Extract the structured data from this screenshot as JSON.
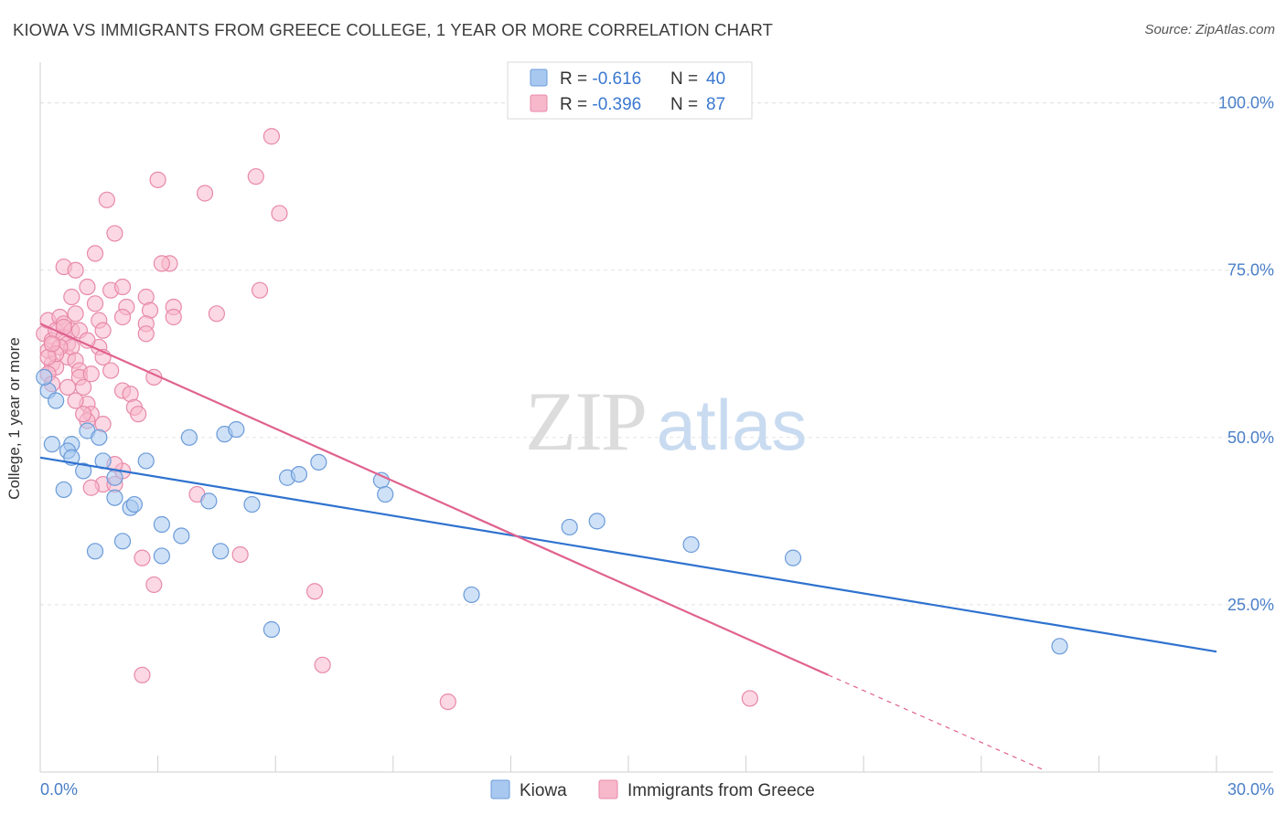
{
  "chart_data": {
    "type": "scatter",
    "title": "KIOWA VS IMMIGRANTS FROM GREECE COLLEGE, 1 YEAR OR MORE CORRELATION CHART",
    "source": "Source: ZipAtlas.com",
    "xlabel": "",
    "ylabel": "College, 1 year or more",
    "xlim": [
      0,
      30
    ],
    "ylim": [
      0,
      105
    ],
    "x_tick_labels": [
      "0.0%",
      "30.0%"
    ],
    "y_ticks": [
      25,
      50,
      75,
      100
    ],
    "y_tick_labels": [
      "25.0%",
      "50.0%",
      "75.0%",
      "100.0%"
    ],
    "watermark": {
      "zip": "ZIP",
      "atlas": "atlas"
    },
    "legend": [
      {
        "label": "R = ",
        "r": "-0.616",
        "n_label": "N = ",
        "n": "40",
        "color": "#a8c8f0"
      },
      {
        "label": "R = ",
        "r": "-0.396",
        "n_label": "N = ",
        "n": "87",
        "color": "#f7b8cc"
      }
    ],
    "series": [
      {
        "name": "Kiowa",
        "color": "#a8c8f0",
        "stroke": "#6b9bd8",
        "trend_color": "#2e72cf",
        "trend": {
          "x0": 0.0,
          "y0": 47.0,
          "x1": 30.0,
          "y1": 18.0
        },
        "points": [
          [
            0.2,
            57.0
          ],
          [
            0.4,
            55.5
          ],
          [
            0.3,
            49.0
          ],
          [
            0.8,
            49.0
          ],
          [
            0.7,
            48.0
          ],
          [
            0.8,
            47.0
          ],
          [
            1.2,
            51.0
          ],
          [
            1.5,
            50.0
          ],
          [
            1.6,
            46.5
          ],
          [
            0.6,
            42.2
          ],
          [
            1.9,
            44.0
          ],
          [
            1.9,
            41.0
          ],
          [
            2.3,
            39.5
          ],
          [
            2.7,
            46.5
          ],
          [
            3.1,
            37.0
          ],
          [
            3.8,
            50.0
          ],
          [
            4.3,
            40.5
          ],
          [
            4.7,
            50.5
          ],
          [
            5.0,
            51.2
          ],
          [
            4.6,
            33.0
          ],
          [
            3.6,
            35.3
          ],
          [
            3.1,
            32.3
          ],
          [
            2.1,
            34.5
          ],
          [
            1.4,
            33.0
          ],
          [
            5.4,
            40.0
          ],
          [
            6.3,
            44.0
          ],
          [
            6.6,
            44.5
          ],
          [
            7.1,
            46.3
          ],
          [
            8.7,
            43.6
          ],
          [
            8.8,
            41.5
          ],
          [
            13.5,
            36.6
          ],
          [
            14.2,
            37.5
          ],
          [
            16.6,
            34.0
          ],
          [
            19.2,
            32.0
          ],
          [
            5.9,
            21.3
          ],
          [
            11.0,
            26.5
          ],
          [
            26.0,
            18.8
          ],
          [
            0.1,
            59.0
          ],
          [
            1.1,
            45.0
          ],
          [
            2.4,
            40.0
          ]
        ]
      },
      {
        "name": "Immigrants from Greece",
        "color": "#f7b8cc",
        "stroke": "#e889a8",
        "trend_color": "#e0628f",
        "trend": {
          "x0": 0.0,
          "y0": 67.0,
          "x1": 20.1,
          "y1": 14.5
        },
        "trend_dash": {
          "x0": 20.1,
          "y0": 14.5,
          "x1": 25.6,
          "y1": 0.3
        },
        "points": [
          [
            0.1,
            65.5
          ],
          [
            0.2,
            67.5
          ],
          [
            0.2,
            63.0
          ],
          [
            0.3,
            64.5
          ],
          [
            0.3,
            61.0
          ],
          [
            0.4,
            60.5
          ],
          [
            0.4,
            66.0
          ],
          [
            0.5,
            68.0
          ],
          [
            0.6,
            67.0
          ],
          [
            0.6,
            65.0
          ],
          [
            0.7,
            64.0
          ],
          [
            0.7,
            62.0
          ],
          [
            0.8,
            66.0
          ],
          [
            0.8,
            63.5
          ],
          [
            0.9,
            61.5
          ],
          [
            1.0,
            60.0
          ],
          [
            1.0,
            59.0
          ],
          [
            1.1,
            57.5
          ],
          [
            1.2,
            55.0
          ],
          [
            1.3,
            53.5
          ],
          [
            1.2,
            52.5
          ],
          [
            0.2,
            59.5
          ],
          [
            0.3,
            58.0
          ],
          [
            0.6,
            75.5
          ],
          [
            0.9,
            75.0
          ],
          [
            0.8,
            71.0
          ],
          [
            1.2,
            72.5
          ],
          [
            1.4,
            77.5
          ],
          [
            1.8,
            72.0
          ],
          [
            1.7,
            85.5
          ],
          [
            1.9,
            80.5
          ],
          [
            2.1,
            72.5
          ],
          [
            2.2,
            69.5
          ],
          [
            2.1,
            68.0
          ],
          [
            1.5,
            67.5
          ],
          [
            1.6,
            66.0
          ],
          [
            1.5,
            63.5
          ],
          [
            1.6,
            62.0
          ],
          [
            1.8,
            60.0
          ],
          [
            1.3,
            59.5
          ],
          [
            2.1,
            57.0
          ],
          [
            2.3,
            56.5
          ],
          [
            2.4,
            54.5
          ],
          [
            2.5,
            53.5
          ],
          [
            2.7,
            71.0
          ],
          [
            2.8,
            69.0
          ],
          [
            2.7,
            67.0
          ],
          [
            2.7,
            65.5
          ],
          [
            2.9,
            59.0
          ],
          [
            3.0,
            88.5
          ],
          [
            3.3,
            76.0
          ],
          [
            3.1,
            76.0
          ],
          [
            3.4,
            69.5
          ],
          [
            3.4,
            68.0
          ],
          [
            4.2,
            86.5
          ],
          [
            4.5,
            68.5
          ],
          [
            5.5,
            89.0
          ],
          [
            5.6,
            72.0
          ],
          [
            5.9,
            95.0
          ],
          [
            6.1,
            83.5
          ],
          [
            1.6,
            43.0
          ],
          [
            1.9,
            43.0
          ],
          [
            2.1,
            45.0
          ],
          [
            1.3,
            42.5
          ],
          [
            4.0,
            41.5
          ],
          [
            5.1,
            32.5
          ],
          [
            2.6,
            32.0
          ],
          [
            2.9,
            28.0
          ],
          [
            7.0,
            27.0
          ],
          [
            7.2,
            16.0
          ],
          [
            2.6,
            14.5
          ],
          [
            10.4,
            10.5
          ],
          [
            18.1,
            11.0
          ],
          [
            1.1,
            53.5
          ],
          [
            0.7,
            57.5
          ],
          [
            0.5,
            63.5
          ],
          [
            0.4,
            62.5
          ],
          [
            0.2,
            62.0
          ],
          [
            1.0,
            66.0
          ],
          [
            1.2,
            64.5
          ],
          [
            0.9,
            68.5
          ],
          [
            0.3,
            64.0
          ],
          [
            0.6,
            66.5
          ],
          [
            1.4,
            70.0
          ],
          [
            1.9,
            46.0
          ],
          [
            1.6,
            52.0
          ],
          [
            0.9,
            55.5
          ]
        ]
      }
    ]
  }
}
